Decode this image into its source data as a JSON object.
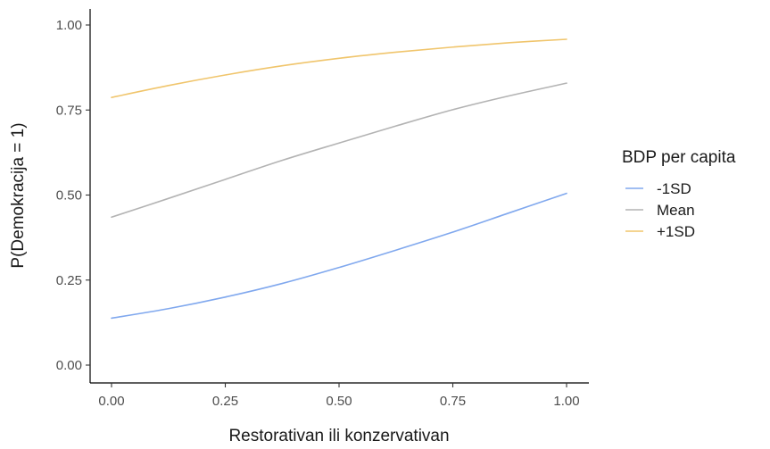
{
  "chart_data": {
    "type": "line",
    "xlabel": "Restorativan ili konzervativan",
    "ylabel": "P(Demokracija = 1)",
    "xlim": [
      0,
      1
    ],
    "ylim": [
      0,
      1
    ],
    "x_ticks": [
      {
        "value": 0,
        "label": "0.00"
      },
      {
        "value": 0.25,
        "label": "0.25"
      },
      {
        "value": 0.5,
        "label": "0.50"
      },
      {
        "value": 0.75,
        "label": "0.75"
      },
      {
        "value": 1,
        "label": "1.00"
      }
    ],
    "y_ticks": [
      {
        "value": 0,
        "label": "0.00"
      },
      {
        "value": 0.25,
        "label": "0.25"
      },
      {
        "value": 0.5,
        "label": "0.50"
      },
      {
        "value": 0.75,
        "label": "0.75"
      },
      {
        "value": 1,
        "label": "1.00"
      }
    ],
    "grid": false,
    "legend": {
      "title": "BDP per capita",
      "position": "right"
    },
    "x": [
      0,
      0.125,
      0.25,
      0.375,
      0.5,
      0.625,
      0.75,
      0.875,
      1
    ],
    "series": [
      {
        "name": "-1SD",
        "color": "#80a8ee",
        "values": [
          0.138,
          0.166,
          0.2,
          0.24,
          0.287,
          0.338,
          0.391,
          0.448,
          0.505
        ]
      },
      {
        "name": "Mean",
        "color": "#b3b3b3",
        "values": [
          0.435,
          0.49,
          0.546,
          0.602,
          0.653,
          0.703,
          0.751,
          0.792,
          0.829
        ]
      },
      {
        "name": "+1SD",
        "color": "#f0c56c",
        "values": [
          0.787,
          0.822,
          0.853,
          0.88,
          0.902,
          0.92,
          0.935,
          0.948,
          0.958
        ]
      }
    ]
  }
}
